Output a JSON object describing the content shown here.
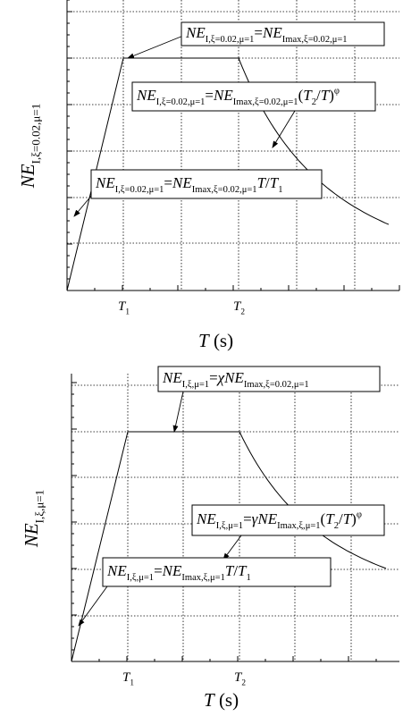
{
  "charts": [
    {
      "y_label": [
        {
          "text": "NE",
          "style": "italic"
        },
        {
          "text": "I,ξ=0.02,μ=1",
          "style": "sub"
        }
      ],
      "x_label": [
        {
          "text": "T",
          "style": "italic"
        },
        {
          "text": " (s)",
          "style": "roman"
        }
      ],
      "ticks": [
        [
          {
            "text": "T",
            "style": "italic"
          },
          {
            "text": "1",
            "style": "sub"
          }
        ],
        [
          {
            "text": "T",
            "style": "italic"
          },
          {
            "text": "2",
            "style": "sub"
          }
        ]
      ],
      "annotations": [
        [
          {
            "text": "NE",
            "style": "italic"
          },
          {
            "text": "I,ξ=0.02,μ=1",
            "style": "sub"
          },
          {
            "text": "=",
            "style": "roman"
          },
          {
            "text": "NE",
            "style": "italic"
          },
          {
            "text": "Imax,ξ=0.02,μ=1",
            "style": "sub"
          }
        ],
        [
          {
            "text": "NE",
            "style": "italic"
          },
          {
            "text": "I,ξ=0.02,μ=1",
            "style": "sub"
          },
          {
            "text": "=",
            "style": "roman"
          },
          {
            "text": "NE",
            "style": "italic"
          },
          {
            "text": "Imax,ξ=0.02,μ=1",
            "style": "sub"
          },
          {
            "text": "(",
            "style": "roman"
          },
          {
            "text": "T",
            "style": "italic"
          },
          {
            "text": "2",
            "style": "sub"
          },
          {
            "text": "/",
            "style": "roman"
          },
          {
            "text": "T",
            "style": "italic"
          },
          {
            "text": ")",
            "style": "roman"
          },
          {
            "text": "φ",
            "style": "sup"
          }
        ],
        [
          {
            "text": "NE",
            "style": "italic"
          },
          {
            "text": "I,ξ=0.02,μ=1",
            "style": "sub"
          },
          {
            "text": "=",
            "style": "roman"
          },
          {
            "text": "NE",
            "style": "italic"
          },
          {
            "text": "Imax,ξ=0.02,μ=1",
            "style": "sub"
          },
          {
            "text": "T",
            "style": "italic"
          },
          {
            "text": "/",
            "style": "roman"
          },
          {
            "text": "T",
            "style": "italic"
          },
          {
            "text": "1",
            "style": "sub"
          }
        ]
      ]
    },
    {
      "y_label": [
        {
          "text": "NE",
          "style": "italic"
        },
        {
          "text": "I,ξ,μ=1",
          "style": "sub"
        }
      ],
      "x_label": [
        {
          "text": "T",
          "style": "italic"
        },
        {
          "text": " (s)",
          "style": "roman"
        }
      ],
      "ticks": [
        [
          {
            "text": "T",
            "style": "italic"
          },
          {
            "text": "1",
            "style": "sub"
          }
        ],
        [
          {
            "text": "T",
            "style": "italic"
          },
          {
            "text": "2",
            "style": "sub"
          }
        ]
      ],
      "annotations": [
        [
          {
            "text": "NE",
            "style": "italic"
          },
          {
            "text": "I,ξ,μ=1",
            "style": "sub"
          },
          {
            "text": "=",
            "style": "roman"
          },
          {
            "text": "χ",
            "style": "italic"
          },
          {
            "text": "NE",
            "style": "italic"
          },
          {
            "text": "Imax,ξ=0.02,μ=1",
            "style": "sub"
          }
        ],
        [
          {
            "text": "NE",
            "style": "italic"
          },
          {
            "text": "I,ξ,μ=1",
            "style": "sub"
          },
          {
            "text": "=",
            "style": "roman"
          },
          {
            "text": "γ",
            "style": "italic"
          },
          {
            "text": "NE",
            "style": "italic"
          },
          {
            "text": "Imax,ξ,μ=1",
            "style": "sub"
          },
          {
            "text": "(",
            "style": "roman"
          },
          {
            "text": "T",
            "style": "italic"
          },
          {
            "text": "2",
            "style": "sub"
          },
          {
            "text": "/",
            "style": "roman"
          },
          {
            "text": "T",
            "style": "italic"
          },
          {
            "text": ")",
            "style": "roman"
          },
          {
            "text": "φ",
            "style": "sup"
          }
        ],
        [
          {
            "text": "NE",
            "style": "italic"
          },
          {
            "text": "I,ξ,μ=1",
            "style": "sub"
          },
          {
            "text": "=",
            "style": "roman"
          },
          {
            "text": "NE",
            "style": "italic"
          },
          {
            "text": "Imax,ξ,μ=1",
            "style": "sub"
          },
          {
            "text": "T",
            "style": "italic"
          },
          {
            "text": "/",
            "style": "roman"
          },
          {
            "text": "T",
            "style": "italic"
          },
          {
            "text": "1",
            "style": "sub"
          }
        ]
      ]
    }
  ]
}
